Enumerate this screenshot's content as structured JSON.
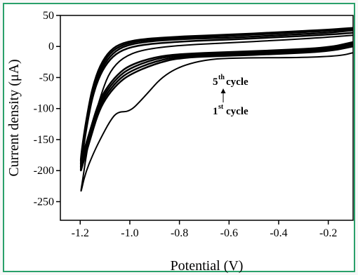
{
  "chart_data": {
    "type": "line",
    "title": "",
    "xlabel": "Potential (V)",
    "ylabel": "Current density (μA)",
    "xlim": [
      -1.28,
      -0.1
    ],
    "ylim": [
      -280,
      50
    ],
    "x_ticks": [
      "-1.2",
      "-1.0",
      "-0.8",
      "-0.6",
      "-0.4",
      "-0.2"
    ],
    "x_tick_values": [
      -1.2,
      -1.0,
      -0.8,
      -0.6,
      -0.4,
      -0.2
    ],
    "y_ticks": [
      "50",
      "0",
      "-50",
      "-100",
      "-150",
      "-200",
      "-250"
    ],
    "y_tick_values": [
      50,
      0,
      -50,
      -100,
      -150,
      -200,
      -250
    ],
    "grid": false,
    "annotations": {
      "fifth_cycle": {
        "num": "5",
        "sup": "th",
        "word": "cycle"
      },
      "first_cycle": {
        "num": "1",
        "sup": "st",
        "word": "cycle"
      }
    },
    "series": [
      {
        "stroke_width": 2,
        "x": [
          -0.1,
          -0.15,
          -0.3,
          -0.5,
          -0.7,
          -0.85,
          -0.95,
          -1.0,
          -1.05,
          -1.08,
          -1.12,
          -1.15,
          -1.18,
          -1.2,
          -1.19,
          -1.17,
          -1.14,
          -1.11,
          -1.08,
          -1.03,
          -0.95,
          -0.8,
          -0.6,
          -0.4,
          -0.2,
          -0.1
        ],
        "y": [
          -10,
          -15,
          -18,
          -18,
          -20,
          -40,
          -85,
          -105,
          -105,
          -120,
          -150,
          -175,
          -205,
          -240,
          -215,
          -160,
          -110,
          -70,
          -40,
          -18,
          -5,
          2,
          6,
          10,
          15,
          18
        ]
      },
      {
        "stroke_width": 2.5,
        "x": [
          -0.1,
          -0.2,
          -0.4,
          -0.6,
          -0.8,
          -0.9,
          -1.0,
          -1.05,
          -1.1,
          -1.13,
          -1.16,
          -1.19,
          -1.2,
          -1.19,
          -1.17,
          -1.15,
          -1.12,
          -1.08,
          -1.03,
          -0.95,
          -0.8,
          -0.6,
          -0.4,
          -0.2,
          -0.1
        ],
        "y": [
          0,
          -8,
          -12,
          -15,
          -18,
          -28,
          -45,
          -60,
          -85,
          -110,
          -150,
          -190,
          -205,
          -170,
          -120,
          -80,
          -45,
          -20,
          -5,
          3,
          8,
          11,
          15,
          19,
          22
        ]
      },
      {
        "stroke_width": 2.5,
        "x": [
          -0.1,
          -0.2,
          -0.4,
          -0.6,
          -0.8,
          -0.9,
          -1.0,
          -1.05,
          -1.1,
          -1.13,
          -1.16,
          -1.19,
          -1.2,
          -1.19,
          -1.17,
          -1.15,
          -1.12,
          -1.08,
          -1.03,
          -0.95,
          -0.8,
          -0.6,
          -0.4,
          -0.2,
          -0.1
        ],
        "y": [
          3,
          -6,
          -10,
          -13,
          -16,
          -24,
          -40,
          -55,
          -80,
          -105,
          -145,
          -185,
          -200,
          -165,
          -115,
          -75,
          -40,
          -15,
          0,
          7,
          12,
          14,
          18,
          22,
          26
        ]
      },
      {
        "stroke_width": 2.5,
        "x": [
          -0.1,
          -0.2,
          -0.4,
          -0.6,
          -0.8,
          -0.9,
          -1.0,
          -1.05,
          -1.1,
          -1.13,
          -1.16,
          -1.19,
          -1.2,
          -1.19,
          -1.17,
          -1.15,
          -1.12,
          -1.08,
          -1.03,
          -0.95,
          -0.8,
          -0.6,
          -0.4,
          -0.2,
          -0.1
        ],
        "y": [
          5,
          -4,
          -8,
          -11,
          -14,
          -20,
          -35,
          -50,
          -75,
          -100,
          -140,
          -180,
          -195,
          -160,
          -110,
          -70,
          -35,
          -10,
          3,
          10,
          14,
          17,
          21,
          25,
          28
        ]
      },
      {
        "stroke_width": 2.5,
        "x": [
          -0.1,
          -0.2,
          -0.4,
          -0.6,
          -0.8,
          -0.9,
          -1.0,
          -1.05,
          -1.1,
          -1.13,
          -1.16,
          -1.19,
          -1.2,
          -1.19,
          -1.17,
          -1.15,
          -1.12,
          -1.08,
          -1.03,
          -0.95,
          -0.8,
          -0.6,
          -0.4,
          -0.2,
          -0.1
        ],
        "y": [
          7,
          -2,
          -6,
          -9,
          -12,
          -17,
          -30,
          -45,
          -70,
          -95,
          -135,
          -175,
          -190,
          -155,
          -105,
          -65,
          -30,
          -6,
          6,
          12,
          16,
          19,
          23,
          27,
          30
        ]
      }
    ]
  }
}
